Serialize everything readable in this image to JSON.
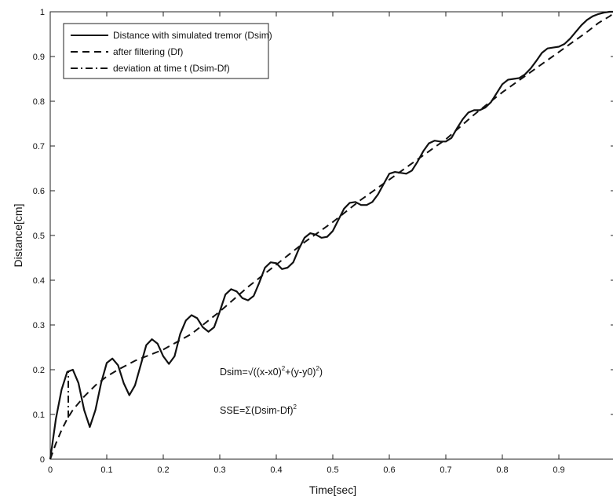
{
  "chart_data": {
    "type": "line",
    "title": "",
    "xlabel": "Time[sec]",
    "ylabel": "Distance[cm]",
    "xlim": [
      0,
      1
    ],
    "ylim": [
      0,
      1
    ],
    "xticks": [
      "0",
      "0.1",
      "0.2",
      "0.3",
      "0.4",
      "0.5",
      "0.6",
      "0.7",
      "0.8",
      "0.9"
    ],
    "yticks": [
      "0",
      "0.1",
      "0.2",
      "0.3",
      "0.4",
      "0.5",
      "0.6",
      "0.7",
      "0.8",
      "0.9",
      "1"
    ],
    "grid": false,
    "legend_position": "top-left",
    "series": [
      {
        "name": "Distance with simulated tremor (Dsim)",
        "style": "solid",
        "x": [
          0,
          0.01,
          0.02,
          0.03,
          0.04,
          0.05,
          0.06,
          0.07,
          0.08,
          0.09,
          0.1,
          0.11,
          0.12,
          0.13,
          0.14,
          0.15,
          0.16,
          0.17,
          0.18,
          0.19,
          0.2,
          0.21,
          0.22,
          0.23,
          0.24,
          0.25,
          0.26,
          0.27,
          0.28,
          0.29,
          0.3,
          0.31,
          0.32,
          0.33,
          0.34,
          0.35,
          0.36,
          0.37,
          0.38,
          0.39,
          0.4,
          0.41,
          0.42,
          0.43,
          0.44,
          0.45,
          0.46,
          0.47,
          0.48,
          0.49,
          0.5,
          0.51,
          0.52,
          0.53,
          0.54,
          0.55,
          0.56,
          0.57,
          0.58,
          0.59,
          0.6,
          0.61,
          0.62,
          0.63,
          0.64,
          0.65,
          0.66,
          0.67,
          0.68,
          0.69,
          0.7,
          0.71,
          0.72,
          0.73,
          0.74,
          0.75,
          0.76,
          0.77,
          0.78,
          0.79,
          0.8,
          0.81,
          0.82,
          0.83,
          0.84,
          0.85,
          0.86,
          0.87,
          0.88,
          0.89,
          0.9,
          0.91,
          0.92,
          0.93,
          0.94,
          0.95,
          0.96,
          0.97,
          0.98,
          0.99,
          1.0
        ],
        "y": [
          0,
          0.09,
          0.155,
          0.195,
          0.2,
          0.17,
          0.11,
          0.072,
          0.11,
          0.17,
          0.215,
          0.225,
          0.21,
          0.17,
          0.143,
          0.165,
          0.21,
          0.255,
          0.268,
          0.258,
          0.23,
          0.213,
          0.23,
          0.28,
          0.31,
          0.322,
          0.315,
          0.295,
          0.285,
          0.295,
          0.33,
          0.368,
          0.38,
          0.375,
          0.36,
          0.355,
          0.365,
          0.395,
          0.428,
          0.44,
          0.438,
          0.425,
          0.428,
          0.44,
          0.47,
          0.495,
          0.505,
          0.502,
          0.495,
          0.497,
          0.51,
          0.535,
          0.56,
          0.573,
          0.575,
          0.568,
          0.568,
          0.575,
          0.592,
          0.615,
          0.638,
          0.642,
          0.64,
          0.638,
          0.645,
          0.665,
          0.688,
          0.706,
          0.712,
          0.71,
          0.71,
          0.718,
          0.74,
          0.76,
          0.775,
          0.78,
          0.78,
          0.786,
          0.798,
          0.818,
          0.838,
          0.848,
          0.85,
          0.852,
          0.86,
          0.873,
          0.89,
          0.908,
          0.918,
          0.92,
          0.922,
          0.928,
          0.94,
          0.955,
          0.97,
          0.982,
          0.99,
          0.995,
          0.998,
          1.0,
          1.0
        ]
      },
      {
        "name": "after filtering (Df)",
        "style": "dashed",
        "x": [
          0,
          0.01,
          0.02,
          0.03,
          0.04,
          0.06,
          0.08,
          0.1,
          0.12,
          0.15,
          0.2,
          0.25,
          0.3,
          0.35,
          0.4,
          0.45,
          0.5,
          0.55,
          0.6,
          0.65,
          0.7,
          0.75,
          0.8,
          0.85,
          0.9,
          0.95,
          0.97,
          0.99,
          1.0
        ],
        "y": [
          0,
          0.035,
          0.065,
          0.09,
          0.11,
          0.14,
          0.165,
          0.185,
          0.2,
          0.22,
          0.245,
          0.28,
          0.33,
          0.385,
          0.435,
          0.485,
          0.53,
          0.58,
          0.625,
          0.67,
          0.715,
          0.77,
          0.82,
          0.865,
          0.91,
          0.955,
          0.975,
          0.99,
          1.0
        ]
      },
      {
        "name": "deviation at time  t (Dsim-Df)",
        "style": "dashdot",
        "x": [
          0.032,
          0.032
        ],
        "y": [
          0.093,
          0.198
        ]
      }
    ],
    "annotations": [
      {
        "parts": [
          "Dsim=√((x-x0)",
          "2",
          "+(y-y0)",
          "2",
          ")"
        ]
      },
      {
        "parts": [
          "SSE=Σ(Dsim-Df)",
          "2"
        ]
      }
    ]
  }
}
